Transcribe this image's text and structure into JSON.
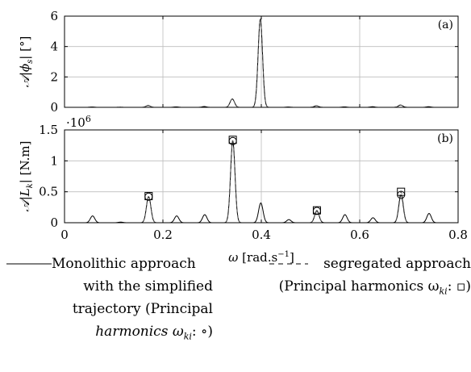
{
  "chart_data": [
    {
      "id": "a",
      "type": "line",
      "panel_label": "(a)",
      "ylabel_parts": [
        "𝒜",
        "|ϕ",
        "s",
        "| [°]"
      ],
      "x_range": [
        0,
        0.8
      ],
      "y_range": [
        0,
        6
      ],
      "y_ticks": [
        0,
        2,
        4,
        6
      ],
      "y_tick_labels": [
        "0",
        "2",
        "4",
        "6"
      ],
      "x_ticks": [
        0,
        0.2,
        0.4,
        0.6,
        0.8
      ],
      "grid": true,
      "series": [
        {
          "line_style": "solid",
          "x": [
            0,
            0.056,
            0.113,
            0.17,
            0.227,
            0.284,
            0.341,
            0.398,
            0.455,
            0.512,
            0.569,
            0.626,
            0.683,
            0.74,
            0.8
          ],
          "y": [
            0,
            0.02,
            0.01,
            0.12,
            0.03,
            0.05,
            0.55,
            5.8,
            0.02,
            0.1,
            0.03,
            0.04,
            0.15,
            0.04,
            0
          ]
        },
        {
          "line_style": "dashed",
          "x": [
            0,
            0.17,
            0.341,
            0.398,
            0.512,
            0.683,
            0.8
          ],
          "y": [
            0,
            0.12,
            0.55,
            5.8,
            0.1,
            0.15,
            0
          ]
        }
      ]
    },
    {
      "id": "b",
      "type": "line",
      "panel_label": "(b)",
      "ylabel_parts": [
        "𝒜",
        "|L",
        "k",
        "| [N.m]"
      ],
      "y_multiplier": "·10",
      "y_multiplier_exp": "6",
      "x_range": [
        0,
        0.8
      ],
      "y_range": [
        0,
        1.5
      ],
      "y_ticks": [
        0,
        0.5,
        1,
        1.5
      ],
      "y_tick_labels": [
        "0",
        "0.5",
        "1",
        "1.5"
      ],
      "x_ticks": [
        0,
        0.2,
        0.4,
        0.6,
        0.8
      ],
      "x_tick_labels": [
        "0",
        "0.2",
        "0.4",
        "0.6",
        "0.8"
      ],
      "xlabel_parts": [
        "ω",
        " [rad.s",
        "−1",
        "]"
      ],
      "grid": true,
      "series": [
        {
          "line_style": "solid",
          "x": [
            0,
            0.057,
            0.114,
            0.171,
            0.228,
            0.285,
            0.342,
            0.399,
            0.456,
            0.513,
            0.57,
            0.627,
            0.684,
            0.741,
            0.8
          ],
          "y": [
            0,
            0.11,
            0.01,
            0.42,
            0.11,
            0.13,
            1.32,
            0.32,
            0.05,
            0.19,
            0.13,
            0.08,
            0.45,
            0.15,
            0
          ]
        },
        {
          "line_style": "dashed",
          "x": [
            0,
            0.171,
            0.342,
            0.513,
            0.684,
            0.8
          ],
          "y": [
            0,
            0.43,
            1.34,
            0.2,
            0.5,
            0
          ]
        }
      ],
      "markers_circle": {
        "x": [
          0.171,
          0.342,
          0.513,
          0.684
        ],
        "y": [
          0.42,
          1.32,
          0.19,
          0.45
        ]
      },
      "markers_square": {
        "x": [
          0.171,
          0.342,
          0.513,
          0.684
        ],
        "y": [
          0.43,
          1.34,
          0.2,
          0.5
        ]
      }
    }
  ],
  "legend": {
    "monolithic": [
      "Monolithic approach",
      "with the simplified",
      "trajectory (Principal",
      "harmonics ω",
      "ki",
      ": ∘)"
    ],
    "segregated": [
      "segregated approach",
      "(Principal harmonics ω",
      "ki",
      ": ▫)"
    ]
  }
}
